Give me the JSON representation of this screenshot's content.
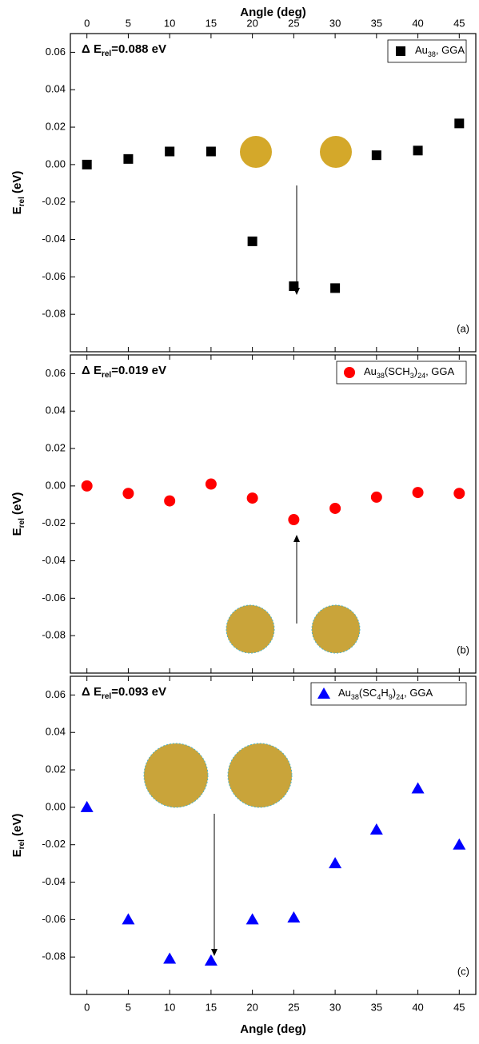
{
  "chart_data": [
    {
      "type": "scatter",
      "xlabel": "Angle (deg)",
      "ylabel": [
        "E",
        "rel",
        " (eV)"
      ],
      "annotation": [
        "Δ E",
        "rel",
        "=0.088 eV"
      ],
      "panel_label": "(a)",
      "xlim": [
        -2,
        47
      ],
      "xticks": [
        0,
        5,
        10,
        15,
        20,
        25,
        30,
        35,
        40,
        45
      ],
      "ylim": [
        -0.1,
        0.07
      ],
      "yticks": [
        -0.08,
        -0.06,
        -0.04,
        -0.02,
        {
          "value": 0,
          "label": "0.00"
        },
        0.02,
        0.04,
        0.06
      ],
      "legend": "upper right",
      "series": [
        {
          "name": [
            "Au",
            "38",
            ", GGA"
          ],
          "color": "#000000",
          "marker": "square",
          "x": [
            0,
            5,
            10,
            15,
            20,
            25,
            30,
            35,
            40,
            45
          ],
          "values": [
            0,
            0.003,
            0.007,
            0.007,
            -0.041,
            -0.065,
            -0.066,
            0.005,
            0.0075,
            0.022
          ]
        }
      ]
    },
    {
      "type": "scatter",
      "ylabel": [
        "E",
        "rel",
        " (eV)"
      ],
      "annotation": [
        "Δ E",
        "rel",
        "=0.019 eV"
      ],
      "panel_label": "(b)",
      "xlim": [
        -2,
        47
      ],
      "xticks": [
        0,
        5,
        10,
        15,
        20,
        25,
        30,
        35,
        40,
        45
      ],
      "ylim": [
        -0.1,
        0.07
      ],
      "yticks": [
        -0.08,
        -0.06,
        -0.04,
        -0.02,
        {
          "value": 0,
          "label": "0.00"
        },
        0.02,
        0.04,
        0.06
      ],
      "legend": "upper right",
      "series": [
        {
          "name": [
            "Au",
            "38",
            "(SCH",
            "3",
            ")",
            "24",
            ", GGA"
          ],
          "color": "#ff0000",
          "marker": "circle",
          "x": [
            0,
            5,
            10,
            15,
            20,
            25,
            30,
            35,
            40,
            45
          ],
          "values": [
            0,
            -0.004,
            -0.008,
            0.001,
            -0.0065,
            -0.018,
            -0.012,
            -0.006,
            -0.0035,
            -0.004
          ]
        }
      ]
    },
    {
      "type": "scatter",
      "xlabel": "Angle (deg)",
      "ylabel": [
        "E",
        "rel",
        " (eV)"
      ],
      "annotation": [
        "Δ E",
        "rel",
        "=0.093 eV"
      ],
      "panel_label": "(c)",
      "xlim": [
        -2,
        47
      ],
      "xticks": [
        0,
        5,
        10,
        15,
        20,
        25,
        30,
        35,
        40,
        45
      ],
      "ylim": [
        -0.1,
        0.07
      ],
      "yticks": [
        -0.08,
        -0.06,
        -0.04,
        -0.02,
        {
          "value": 0,
          "label": "0.00"
        },
        0.02,
        0.04,
        0.06
      ],
      "legend": "upper right",
      "series": [
        {
          "name": [
            "Au",
            "38",
            "(SC",
            "4",
            "H",
            "9",
            ")",
            "24",
            ", GGA"
          ],
          "color": "#0000ff",
          "marker": "triangle",
          "x": [
            0,
            5,
            10,
            15,
            20,
            25,
            30,
            35,
            40,
            45
          ],
          "values": [
            0,
            -0.06,
            -0.081,
            -0.082,
            -0.06,
            -0.059,
            -0.03,
            -0.012,
            0.01,
            -0.02
          ]
        }
      ]
    }
  ]
}
